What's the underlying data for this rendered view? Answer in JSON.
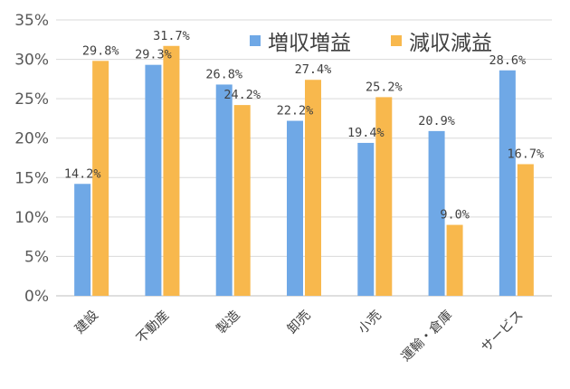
{
  "colors": {
    "series_a": "#6FA8E6",
    "series_b": "#F8B84D",
    "gridline": "#D9D9D9",
    "axis": "#BFBFBF"
  },
  "chart_data": {
    "type": "bar",
    "categories": [
      "建設",
      "不動産",
      "製造",
      "卸売",
      "小売",
      "運輸・倉庫",
      "サービス"
    ],
    "series": [
      {
        "name": "増収増益",
        "values": [
          14.2,
          29.3,
          26.8,
          22.2,
          19.4,
          20.9,
          28.6
        ],
        "labels": [
          "14.2%",
          "29.3%",
          "26.8%",
          "22.2%",
          "19.4%",
          "20.9%",
          "28.6%"
        ]
      },
      {
        "name": "減収減益",
        "values": [
          29.8,
          31.7,
          24.2,
          27.4,
          25.2,
          9.0,
          16.7
        ],
        "labels": [
          "29.8%",
          "31.7%",
          "24.2%",
          "27.4%",
          "25.2%",
          "9.0%",
          "16.7%"
        ]
      }
    ],
    "yticks": [
      "0%",
      "5%",
      "10%",
      "15%",
      "20%",
      "25%",
      "30%",
      "35%"
    ],
    "ylim": [
      0,
      35
    ],
    "grid": true,
    "legend_position": "top-right"
  }
}
